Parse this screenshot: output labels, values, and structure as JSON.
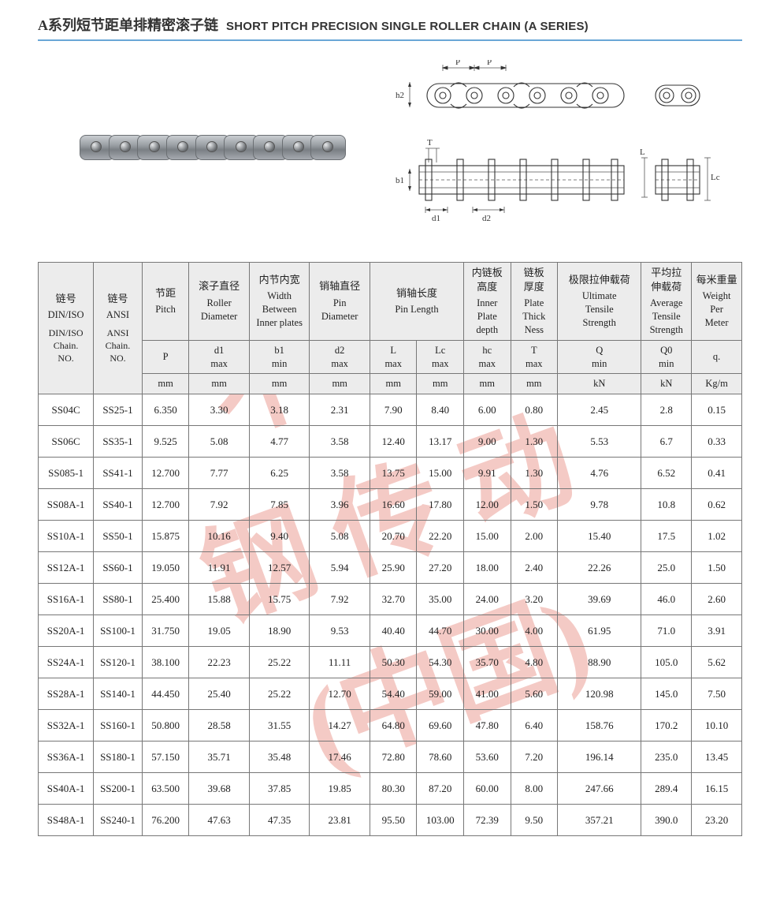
{
  "title": {
    "cn": "A系列短节距单排精密滚子链",
    "en": "SHORT PITCH PRECISION SINGLE ROLLER CHAIN (A SERIES)"
  },
  "title_rule_color": "#6aa7d6",
  "diagram_labels": {
    "p1": "P",
    "p2": "P",
    "h2": "h2",
    "b1": "b1",
    "T_top": "T",
    "d1": "d1",
    "d2": "d2",
    "Lc": "Lc",
    "L": "L"
  },
  "watermark": {
    "color": "#e26a5c",
    "opacity": 0.35,
    "rotation": -20
  },
  "table": {
    "header": {
      "din": {
        "cn": "链号",
        "en": "DIN/ISO",
        "sub": "DIN/ISO\nChain.\nNO."
      },
      "ansi": {
        "cn": "链号",
        "en": "ANSI",
        "sub": "ANSI\nChain.\nNO."
      },
      "p": {
        "cn": "节距",
        "en": "Pitch"
      },
      "d1": {
        "cn": "滚子直径",
        "en": "Roller\nDiameter"
      },
      "b1": {
        "cn": "内节内宽",
        "en": "Width\nBetween\nInner plates"
      },
      "d2": {
        "cn": "销轴直径",
        "en": "Pin\nDiameter"
      },
      "pinlen": {
        "cn": "销轴长度",
        "en": "Pin Length"
      },
      "h2": {
        "cn": "内链板\n高度",
        "en": "Inner\nPlate\ndepth"
      },
      "T": {
        "cn": "链板\n厚度",
        "en": "Plate\nThick\nNess"
      },
      "Q": {
        "cn": "极限拉伸载荷",
        "en": "Ultimate\nTensile\nStrength"
      },
      "Q0": {
        "cn": "平均拉\n伸载荷",
        "en": "Average\nTensile\nStrength"
      },
      "wt": {
        "cn": "每米重量",
        "en": "Weight\nPer\nMeter"
      }
    },
    "subheader": {
      "p": "P",
      "d1": "d1\nmax",
      "b1": "b1\nmin",
      "d2": "d2\nmax",
      "L": "L\nmax",
      "Lc": "Lc\nmax",
      "h2": "hc\nmax",
      "T": "T\nmax",
      "Q": "Q\nmin",
      "Q0": "Q0\nmin",
      "wt": "q."
    },
    "units": {
      "p": "mm",
      "d1": "mm",
      "b1": "mm",
      "d2": "mm",
      "L": "mm",
      "Lc": "mm",
      "h2": "mm",
      "T": "mm",
      "Q": "kN",
      "Q0": "kN",
      "wt": "Kg/m"
    },
    "rows": [
      {
        "din": "SS04C",
        "ansi": "SS25-1",
        "p": "6.350",
        "d1": "3.30",
        "b1": "3.18",
        "d2": "2.31",
        "L": "7.90",
        "Lc": "8.40",
        "h2": "6.00",
        "T": "0.80",
        "Q": "2.45",
        "Q0": "2.8",
        "wt": "0.15"
      },
      {
        "din": "SS06C",
        "ansi": "SS35-1",
        "p": "9.525",
        "d1": "5.08",
        "b1": "4.77",
        "d2": "3.58",
        "L": "12.40",
        "Lc": "13.17",
        "h2": "9.00",
        "T": "1.30",
        "Q": "5.53",
        "Q0": "6.7",
        "wt": "0.33"
      },
      {
        "din": "SS085-1",
        "ansi": "SS41-1",
        "p": "12.700",
        "d1": "7.77",
        "b1": "6.25",
        "d2": "3.58",
        "L": "13.75",
        "Lc": "15.00",
        "h2": "9.91",
        "T": "1.30",
        "Q": "4.76",
        "Q0": "6.52",
        "wt": "0.41"
      },
      {
        "din": "SS08A-1",
        "ansi": "SS40-1",
        "p": "12.700",
        "d1": "7.92",
        "b1": "7.85",
        "d2": "3.96",
        "L": "16.60",
        "Lc": "17.80",
        "h2": "12.00",
        "T": "1.50",
        "Q": "9.78",
        "Q0": "10.8",
        "wt": "0.62"
      },
      {
        "din": "SS10A-1",
        "ansi": "SS50-1",
        "p": "15.875",
        "d1": "10.16",
        "b1": "9.40",
        "d2": "5.08",
        "L": "20.70",
        "Lc": "22.20",
        "h2": "15.00",
        "T": "2.00",
        "Q": "15.40",
        "Q0": "17.5",
        "wt": "1.02"
      },
      {
        "din": "SS12A-1",
        "ansi": "SS60-1",
        "p": "19.050",
        "d1": "11.91",
        "b1": "12.57",
        "d2": "5.94",
        "L": "25.90",
        "Lc": "27.20",
        "h2": "18.00",
        "T": "2.40",
        "Q": "22.26",
        "Q0": "25.0",
        "wt": "1.50"
      },
      {
        "din": "SS16A-1",
        "ansi": "SS80-1",
        "p": "25.400",
        "d1": "15.88",
        "b1": "15.75",
        "d2": "7.92",
        "L": "32.70",
        "Lc": "35.00",
        "h2": "24.00",
        "T": "3.20",
        "Q": "39.69",
        "Q0": "46.0",
        "wt": "2.60"
      },
      {
        "din": "SS20A-1",
        "ansi": "SS100-1",
        "p": "31.750",
        "d1": "19.05",
        "b1": "18.90",
        "d2": "9.53",
        "L": "40.40",
        "Lc": "44.70",
        "h2": "30.00",
        "T": "4.00",
        "Q": "61.95",
        "Q0": "71.0",
        "wt": "3.91"
      },
      {
        "din": "SS24A-1",
        "ansi": "SS120-1",
        "p": "38.100",
        "d1": "22.23",
        "b1": "25.22",
        "d2": "11.11",
        "L": "50.30",
        "Lc": "54.30",
        "h2": "35.70",
        "T": "4.80",
        "Q": "88.90",
        "Q0": "105.0",
        "wt": "5.62"
      },
      {
        "din": "SS28A-1",
        "ansi": "SS140-1",
        "p": "44.450",
        "d1": "25.40",
        "b1": "25.22",
        "d2": "12.70",
        "L": "54.40",
        "Lc": "59.00",
        "h2": "41.00",
        "T": "5.60",
        "Q": "120.98",
        "Q0": "145.0",
        "wt": "7.50"
      },
      {
        "din": "SS32A-1",
        "ansi": "SS160-1",
        "p": "50.800",
        "d1": "28.58",
        "b1": "31.55",
        "d2": "14.27",
        "L": "64.80",
        "Lc": "69.60",
        "h2": "47.80",
        "T": "6.40",
        "Q": "158.76",
        "Q0": "170.2",
        "wt": "10.10"
      },
      {
        "din": "SS36A-1",
        "ansi": "SS180-1",
        "p": "57.150",
        "d1": "35.71",
        "b1": "35.48",
        "d2": "17.46",
        "L": "72.80",
        "Lc": "78.60",
        "h2": "53.60",
        "T": "7.20",
        "Q": "196.14",
        "Q0": "235.0",
        "wt": "13.45"
      },
      {
        "din": "SS40A-1",
        "ansi": "SS200-1",
        "p": "63.500",
        "d1": "39.68",
        "b1": "37.85",
        "d2": "19.85",
        "L": "80.30",
        "Lc": "87.20",
        "h2": "60.00",
        "T": "8.00",
        "Q": "247.66",
        "Q0": "289.4",
        "wt": "16.15"
      },
      {
        "din": "SS48A-1",
        "ansi": "SS240-1",
        "p": "76.200",
        "d1": "47.63",
        "b1": "47.35",
        "d2": "23.81",
        "L": "95.50",
        "Lc": "103.00",
        "h2": "72.39",
        "T": "9.50",
        "Q": "357.21",
        "Q0": "390.0",
        "wt": "23.20"
      }
    ]
  }
}
